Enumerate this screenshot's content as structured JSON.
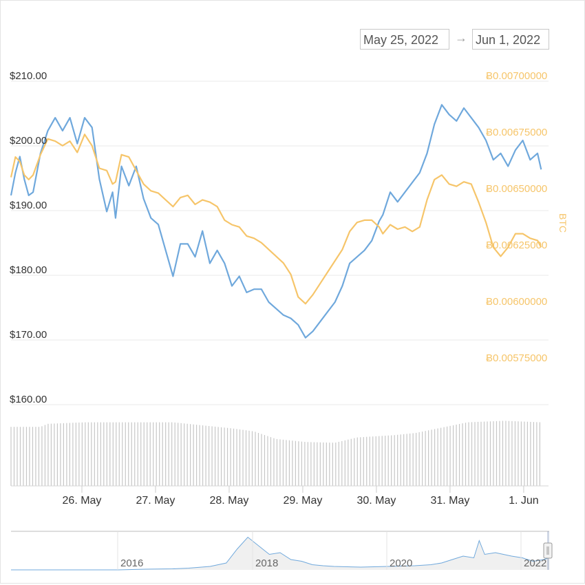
{
  "range_selector": {
    "from": "May 25, 2022",
    "arrow": "→",
    "to": "Jun 1, 2022"
  },
  "colors": {
    "usd": "#6fa8dc",
    "btc": "#f6c56a",
    "volume": "#c6c6c6",
    "grid": "#e9e9e9",
    "navigator": "#c9d4e2"
  },
  "chart_data": {
    "type": "line",
    "title": "",
    "x": [
      "26. May",
      "27. May",
      "28. May",
      "29. May",
      "30. May",
      "31. May",
      "1. Jun"
    ],
    "xlim": [
      0,
      7.3
    ],
    "series": [
      {
        "name": "USD",
        "axis": "left",
        "values": [
          [
            0,
            191.5
          ],
          [
            0.06,
            195
          ],
          [
            0.12,
            197.5
          ],
          [
            0.18,
            194
          ],
          [
            0.24,
            191.5
          ],
          [
            0.3,
            192
          ],
          [
            0.4,
            198
          ],
          [
            0.5,
            201.5
          ],
          [
            0.6,
            203.5
          ],
          [
            0.7,
            201.5
          ],
          [
            0.8,
            203.5
          ],
          [
            0.9,
            199.5
          ],
          [
            1.0,
            203.5
          ],
          [
            1.1,
            202
          ],
          [
            1.2,
            194
          ],
          [
            1.3,
            189
          ],
          [
            1.38,
            192
          ],
          [
            1.42,
            188
          ],
          [
            1.5,
            196
          ],
          [
            1.6,
            193
          ],
          [
            1.7,
            196
          ],
          [
            1.8,
            191
          ],
          [
            1.9,
            188
          ],
          [
            2.0,
            187
          ],
          [
            2.1,
            183
          ],
          [
            2.2,
            179
          ],
          [
            2.3,
            184
          ],
          [
            2.4,
            184
          ],
          [
            2.5,
            182
          ],
          [
            2.6,
            186
          ],
          [
            2.7,
            181
          ],
          [
            2.8,
            183
          ],
          [
            2.9,
            181
          ],
          [
            3.0,
            177.5
          ],
          [
            3.1,
            179
          ],
          [
            3.2,
            176.5
          ],
          [
            3.3,
            177
          ],
          [
            3.4,
            177
          ],
          [
            3.5,
            175
          ],
          [
            3.6,
            174
          ],
          [
            3.7,
            173
          ],
          [
            3.8,
            172.5
          ],
          [
            3.9,
            171.5
          ],
          [
            4.0,
            169.5
          ],
          [
            4.1,
            170.5
          ],
          [
            4.2,
            172
          ],
          [
            4.3,
            173.5
          ],
          [
            4.4,
            175
          ],
          [
            4.5,
            177.5
          ],
          [
            4.6,
            181
          ],
          [
            4.7,
            182
          ],
          [
            4.8,
            183
          ],
          [
            4.9,
            184.5
          ],
          [
            5.0,
            187.5
          ],
          [
            5.05,
            188.5
          ],
          [
            5.15,
            192
          ],
          [
            5.25,
            190.5
          ],
          [
            5.35,
            192
          ],
          [
            5.45,
            193.5
          ],
          [
            5.55,
            195
          ],
          [
            5.65,
            198
          ],
          [
            5.75,
            202.5
          ],
          [
            5.85,
            205.5
          ],
          [
            5.95,
            204
          ],
          [
            6.05,
            203
          ],
          [
            6.15,
            205
          ],
          [
            6.25,
            203.5
          ],
          [
            6.35,
            202
          ],
          [
            6.45,
            200
          ],
          [
            6.55,
            197
          ],
          [
            6.65,
            198
          ],
          [
            6.75,
            196
          ],
          [
            6.85,
            198.5
          ],
          [
            6.95,
            200
          ],
          [
            7.05,
            197
          ],
          [
            7.15,
            198
          ],
          [
            7.2,
            195.5
          ]
        ]
      },
      {
        "name": "BTC",
        "axis": "right",
        "values": [
          [
            0,
            0.00655
          ],
          [
            0.06,
            0.00664
          ],
          [
            0.12,
            0.00662
          ],
          [
            0.18,
            0.00656
          ],
          [
            0.24,
            0.00654
          ],
          [
            0.3,
            0.00656
          ],
          [
            0.4,
            0.00665
          ],
          [
            0.5,
            0.00672
          ],
          [
            0.6,
            0.00671
          ],
          [
            0.7,
            0.00669
          ],
          [
            0.8,
            0.00671
          ],
          [
            0.9,
            0.00666
          ],
          [
            1.0,
            0.00674
          ],
          [
            1.1,
            0.00669
          ],
          [
            1.2,
            0.00659
          ],
          [
            1.3,
            0.00658
          ],
          [
            1.38,
            0.00652
          ],
          [
            1.42,
            0.00653
          ],
          [
            1.5,
            0.00665
          ],
          [
            1.6,
            0.00664
          ],
          [
            1.7,
            0.00658
          ],
          [
            1.8,
            0.00652
          ],
          [
            1.9,
            0.00649
          ],
          [
            2.0,
            0.00648
          ],
          [
            2.1,
            0.00645
          ],
          [
            2.2,
            0.00642
          ],
          [
            2.3,
            0.00646
          ],
          [
            2.4,
            0.00647
          ],
          [
            2.5,
            0.00643
          ],
          [
            2.6,
            0.00645
          ],
          [
            2.7,
            0.00644
          ],
          [
            2.8,
            0.00642
          ],
          [
            2.9,
            0.00636
          ],
          [
            3.0,
            0.00634
          ],
          [
            3.1,
            0.00633
          ],
          [
            3.2,
            0.00629
          ],
          [
            3.3,
            0.00628
          ],
          [
            3.4,
            0.00626
          ],
          [
            3.5,
            0.00623
          ],
          [
            3.6,
            0.0062
          ],
          [
            3.7,
            0.00617
          ],
          [
            3.8,
            0.00612
          ],
          [
            3.9,
            0.00602
          ],
          [
            4.0,
            0.00599
          ],
          [
            4.1,
            0.00603
          ],
          [
            4.2,
            0.00608
          ],
          [
            4.3,
            0.00613
          ],
          [
            4.4,
            0.00618
          ],
          [
            4.5,
            0.00623
          ],
          [
            4.6,
            0.00631
          ],
          [
            4.7,
            0.00635
          ],
          [
            4.8,
            0.00636
          ],
          [
            4.9,
            0.00636
          ],
          [
            5.0,
            0.00633
          ],
          [
            5.05,
            0.0063
          ],
          [
            5.15,
            0.00634
          ],
          [
            5.25,
            0.00632
          ],
          [
            5.35,
            0.00633
          ],
          [
            5.45,
            0.00631
          ],
          [
            5.55,
            0.00633
          ],
          [
            5.65,
            0.00645
          ],
          [
            5.75,
            0.00654
          ],
          [
            5.85,
            0.00656
          ],
          [
            5.95,
            0.00652
          ],
          [
            6.05,
            0.00651
          ],
          [
            6.15,
            0.00653
          ],
          [
            6.25,
            0.00652
          ],
          [
            6.35,
            0.00644
          ],
          [
            6.45,
            0.00635
          ],
          [
            6.55,
            0.00624
          ],
          [
            6.65,
            0.0062
          ],
          [
            6.75,
            0.00624
          ],
          [
            6.85,
            0.0063
          ],
          [
            6.95,
            0.0063
          ],
          [
            7.05,
            0.00628
          ],
          [
            7.15,
            0.00627
          ],
          [
            7.2,
            0.00624
          ]
        ]
      }
    ],
    "y_left": {
      "ylim": [
        155,
        215
      ],
      "ticks": [
        160,
        170,
        180,
        190,
        200,
        210
      ],
      "labels": [
        "$160.00",
        "$170.00",
        "$180.00",
        "$190.00",
        "$200.00",
        "$210.00"
      ]
    },
    "y_right": {
      "label": "BTC",
      "ylim": [
        0.0056,
        0.0071
      ],
      "ticks": [
        0.00575,
        0.006,
        0.00625,
        0.0065,
        0.00675,
        0.007
      ],
      "labels": [
        "Ƀ0.00575000",
        "Ƀ0.00600000",
        "Ƀ0.00625000",
        "Ƀ0.00650000",
        "Ƀ0.00675000",
        "Ƀ0.00700000"
      ]
    },
    "volume": {
      "description_points": [
        [
          0,
          0.78
        ],
        [
          0.4,
          0.78
        ],
        [
          0.5,
          0.82
        ],
        [
          1.0,
          0.84
        ],
        [
          2.2,
          0.84
        ],
        [
          2.6,
          0.8
        ],
        [
          3.0,
          0.76
        ],
        [
          3.3,
          0.72
        ],
        [
          3.6,
          0.62
        ],
        [
          4.0,
          0.58
        ],
        [
          4.4,
          0.57
        ],
        [
          4.7,
          0.64
        ],
        [
          5.2,
          0.67
        ],
        [
          5.5,
          0.7
        ],
        [
          5.8,
          0.76
        ],
        [
          6.2,
          0.84
        ],
        [
          6.7,
          0.86
        ],
        [
          7.2,
          0.84
        ]
      ],
      "unit": "relative height"
    },
    "navigator": {
      "labels": [
        "2016",
        "2018",
        "2020",
        "2022"
      ],
      "values": [
        [
          0,
          0.0
        ],
        [
          0.1,
          0.0
        ],
        [
          0.2,
          0.0
        ],
        [
          0.25,
          0.02
        ],
        [
          0.3,
          0.03
        ],
        [
          0.33,
          0.05
        ],
        [
          0.37,
          0.1
        ],
        [
          0.4,
          0.2
        ],
        [
          0.42,
          0.6
        ],
        [
          0.44,
          0.95
        ],
        [
          0.46,
          0.7
        ],
        [
          0.48,
          0.45
        ],
        [
          0.5,
          0.5
        ],
        [
          0.52,
          0.3
        ],
        [
          0.54,
          0.25
        ],
        [
          0.56,
          0.15
        ],
        [
          0.58,
          0.12
        ],
        [
          0.6,
          0.1
        ],
        [
          0.65,
          0.08
        ],
        [
          0.7,
          0.1
        ],
        [
          0.75,
          0.12
        ],
        [
          0.78,
          0.15
        ],
        [
          0.8,
          0.2
        ],
        [
          0.82,
          0.3
        ],
        [
          0.84,
          0.4
        ],
        [
          0.86,
          0.35
        ],
        [
          0.87,
          0.85
        ],
        [
          0.88,
          0.45
        ],
        [
          0.9,
          0.5
        ],
        [
          0.93,
          0.4
        ],
        [
          0.95,
          0.35
        ],
        [
          0.97,
          0.25
        ],
        [
          0.99,
          0.3
        ],
        [
          1.0,
          0.35
        ]
      ]
    }
  }
}
